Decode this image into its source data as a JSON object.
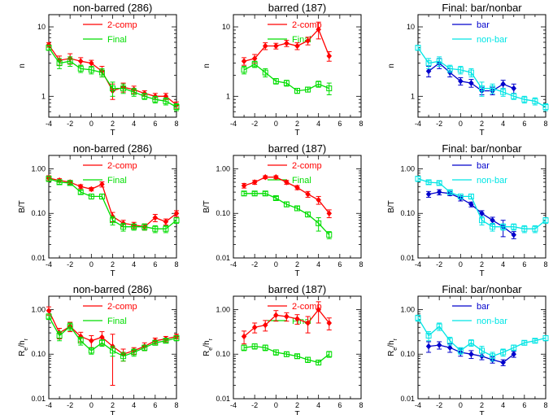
{
  "figure": {
    "x_ticks": [
      "-4",
      "-2",
      "0",
      "2",
      "4",
      "6",
      "8"
    ],
    "x_label": "T"
  },
  "chart_data": [
    {
      "type": "line",
      "title": "non-barred (286)",
      "xlabel": "T",
      "ylabel": "n",
      "yscale": "log",
      "xlim": [
        -4,
        8
      ],
      "ylim": [
        0.5,
        15
      ],
      "y_ticks": [
        "1",
        "10"
      ],
      "legend_placement": "top-center",
      "grid": false,
      "series": [
        {
          "name": "2-comp",
          "color": "#ff0000",
          "marker": "diamond",
          "x": [
            -4,
            -3,
            -2,
            -1,
            0,
            1,
            2,
            3,
            4,
            5,
            6,
            7,
            8
          ],
          "y": [
            5.5,
            3.3,
            3.5,
            3.2,
            3.0,
            2.3,
            1.2,
            1.35,
            1.25,
            1.1,
            1.0,
            1.0,
            0.75
          ],
          "err": [
            0.4,
            0.5,
            0.6,
            0.4,
            0.3,
            0.4,
            0.3,
            0.2,
            0.15,
            0.1,
            0.1,
            0.1,
            0.08
          ]
        },
        {
          "name": "Final",
          "color": "#00dd00",
          "marker": "square",
          "x": [
            -4,
            -3,
            -2,
            -1,
            0,
            1,
            2,
            3,
            4,
            5,
            6,
            7,
            8
          ],
          "y": [
            5.0,
            3.0,
            3.2,
            2.5,
            2.4,
            2.2,
            1.3,
            1.3,
            1.15,
            1.0,
            0.9,
            0.85,
            0.7
          ],
          "err": [
            0.4,
            0.5,
            0.5,
            0.3,
            0.3,
            0.3,
            0.3,
            0.2,
            0.15,
            0.1,
            0.1,
            0.1,
            0.08
          ]
        }
      ]
    },
    {
      "type": "line",
      "title": "barred (187)",
      "xlabel": "T",
      "ylabel": "n",
      "yscale": "log",
      "xlim": [
        -4,
        8
      ],
      "ylim": [
        0.5,
        15
      ],
      "y_ticks": [
        "1",
        "10"
      ],
      "legend_placement": "top-center",
      "grid": false,
      "series": [
        {
          "name": "2-comp",
          "color": "#ff0000",
          "marker": "diamond",
          "x": [
            -3,
            -2,
            -1,
            0,
            1,
            2,
            3,
            4,
            5
          ],
          "y": [
            3.2,
            3.5,
            5.3,
            5.3,
            5.8,
            5.3,
            6.3,
            9.2,
            3.8
          ],
          "err": [
            0.4,
            0.5,
            0.6,
            0.5,
            0.6,
            0.6,
            0.8,
            2.5,
            0.6
          ]
        },
        {
          "name": "Final",
          "color": "#00dd00",
          "marker": "square",
          "x": [
            -3,
            -2,
            -1,
            0,
            1,
            2,
            3,
            4,
            5
          ],
          "y": [
            2.4,
            2.9,
            2.2,
            1.65,
            1.55,
            1.2,
            1.25,
            1.5,
            1.3
          ],
          "err": [
            0.3,
            0.3,
            0.3,
            0.15,
            0.15,
            0.1,
            0.1,
            0.15,
            0.25
          ]
        }
      ]
    },
    {
      "type": "line",
      "title": "Final: bar/nonbar",
      "xlabel": "T",
      "ylabel": "n",
      "yscale": "log",
      "xlim": [
        -4,
        8
      ],
      "ylim": [
        0.5,
        15
      ],
      "y_ticks": [
        "1",
        "10"
      ],
      "legend_placement": "top-center",
      "grid": false,
      "series": [
        {
          "name": "bar",
          "color": "#0000cc",
          "marker": "diamond",
          "x": [
            -3,
            -2,
            -1,
            0,
            1,
            2,
            3,
            4,
            5
          ],
          "y": [
            2.3,
            3.0,
            2.2,
            1.65,
            1.55,
            1.2,
            1.2,
            1.5,
            1.3
          ],
          "err": [
            0.4,
            0.5,
            0.3,
            0.2,
            0.2,
            0.15,
            0.15,
            0.2,
            0.2
          ]
        },
        {
          "name": "non-bar",
          "color": "#00e5e5",
          "marker": "square",
          "x": [
            -4,
            -3,
            -2,
            -1,
            0,
            1,
            2,
            3,
            4,
            5,
            6,
            7,
            8
          ],
          "y": [
            5.0,
            3.0,
            3.2,
            2.5,
            2.4,
            2.2,
            1.3,
            1.3,
            1.15,
            1.0,
            0.9,
            0.85,
            0.7
          ],
          "err": [
            0.4,
            0.5,
            0.5,
            0.3,
            0.3,
            0.3,
            0.3,
            0.2,
            0.15,
            0.1,
            0.1,
            0.1,
            0.08
          ]
        }
      ]
    },
    {
      "type": "line",
      "title": "non-barred (286)",
      "xlabel": "T",
      "ylabel": "B/T",
      "yscale": "log",
      "xlim": [
        -4,
        8
      ],
      "ylim": [
        0.01,
        2
      ],
      "y_ticks": [
        "0.01",
        "0.10",
        "1.00"
      ],
      "legend_placement": "top-center",
      "grid": false,
      "series": [
        {
          "name": "2-comp",
          "color": "#ff0000",
          "marker": "diamond",
          "x": [
            -4,
            -3,
            -2,
            -1,
            0,
            1,
            2,
            3,
            4,
            5,
            6,
            7,
            8
          ],
          "y": [
            0.62,
            0.55,
            0.5,
            0.4,
            0.35,
            0.45,
            0.085,
            0.06,
            0.055,
            0.05,
            0.08,
            0.065,
            0.1
          ],
          "err": [
            0.08,
            0.05,
            0.05,
            0.04,
            0.03,
            0.06,
            0.02,
            0.01,
            0.008,
            0.008,
            0.015,
            0.01,
            0.015
          ]
        },
        {
          "name": "Final",
          "color": "#00dd00",
          "marker": "square",
          "x": [
            -4,
            -3,
            -2,
            -1,
            0,
            1,
            2,
            3,
            4,
            5,
            6,
            7,
            8
          ],
          "y": [
            0.6,
            0.5,
            0.48,
            0.3,
            0.24,
            0.24,
            0.07,
            0.05,
            0.05,
            0.05,
            0.045,
            0.045,
            0.07
          ],
          "err": [
            0.08,
            0.05,
            0.05,
            0.03,
            0.03,
            0.03,
            0.015,
            0.01,
            0.008,
            0.008,
            0.008,
            0.008,
            0.01
          ]
        }
      ]
    },
    {
      "type": "line",
      "title": "barred (187)",
      "xlabel": "T",
      "ylabel": "B/T",
      "yscale": "log",
      "xlim": [
        -4,
        8
      ],
      "ylim": [
        0.01,
        2
      ],
      "y_ticks": [
        "0.01",
        "0.10",
        "1.00"
      ],
      "legend_placement": "top-center",
      "grid": false,
      "series": [
        {
          "name": "2-comp",
          "color": "#ff0000",
          "marker": "diamond",
          "x": [
            -3,
            -2,
            -1,
            0,
            1,
            2,
            3,
            4,
            5
          ],
          "y": [
            0.42,
            0.5,
            0.65,
            0.65,
            0.5,
            0.38,
            0.27,
            0.2,
            0.1
          ],
          "err": [
            0.05,
            0.05,
            0.05,
            0.05,
            0.05,
            0.04,
            0.04,
            0.04,
            0.02
          ]
        },
        {
          "name": "Final",
          "color": "#00dd00",
          "marker": "square",
          "x": [
            -3,
            -2,
            -1,
            0,
            1,
            2,
            3,
            4,
            5
          ],
          "y": [
            0.28,
            0.28,
            0.28,
            0.22,
            0.16,
            0.13,
            0.095,
            0.06,
            0.033
          ],
          "err": [
            0.03,
            0.03,
            0.03,
            0.02,
            0.02,
            0.015,
            0.012,
            0.02,
            0.006
          ]
        }
      ]
    },
    {
      "type": "line",
      "title": "Final: bar/nonbar",
      "xlabel": "T",
      "ylabel": "B/T",
      "yscale": "log",
      "xlim": [
        -4,
        8
      ],
      "ylim": [
        0.01,
        2
      ],
      "y_ticks": [
        "0.01",
        "0.10",
        "1.00"
      ],
      "legend_placement": "top-center",
      "grid": false,
      "series": [
        {
          "name": "bar",
          "color": "#0000cc",
          "marker": "diamond",
          "x": [
            -3,
            -2,
            -1,
            0,
            1,
            2,
            3,
            4,
            5
          ],
          "y": [
            0.27,
            0.3,
            0.28,
            0.22,
            0.16,
            0.1,
            0.07,
            0.05,
            0.033
          ],
          "err": [
            0.04,
            0.04,
            0.03,
            0.03,
            0.02,
            0.015,
            0.012,
            0.02,
            0.006
          ]
        },
        {
          "name": "non-bar",
          "color": "#00e5e5",
          "marker": "square",
          "x": [
            -4,
            -3,
            -2,
            -1,
            0,
            1,
            2,
            3,
            4,
            5,
            6,
            7,
            8
          ],
          "y": [
            0.6,
            0.5,
            0.48,
            0.3,
            0.24,
            0.24,
            0.07,
            0.05,
            0.05,
            0.05,
            0.045,
            0.045,
            0.07
          ],
          "err": [
            0.08,
            0.05,
            0.05,
            0.03,
            0.03,
            0.03,
            0.015,
            0.01,
            0.008,
            0.008,
            0.008,
            0.008,
            0.01
          ]
        }
      ]
    },
    {
      "type": "line",
      "title": "non-barred (286)",
      "xlabel": "T",
      "ylabel": "Re/hr",
      "yscale": "log",
      "xlim": [
        -4,
        8
      ],
      "ylim": [
        0.01,
        2
      ],
      "y_ticks": [
        "0.01",
        "0.10",
        "1.00"
      ],
      "legend_placement": "top-center",
      "grid": false,
      "series": [
        {
          "name": "2-comp",
          "color": "#ff0000",
          "marker": "diamond",
          "x": [
            -4,
            -3,
            -2,
            -1,
            0,
            1,
            2,
            3,
            4,
            5,
            6,
            7,
            8
          ],
          "y": [
            0.95,
            0.3,
            0.42,
            0.25,
            0.2,
            0.24,
            0.15,
            0.1,
            0.12,
            0.15,
            0.2,
            0.22,
            0.25
          ],
          "err": [
            0.2,
            0.08,
            0.1,
            0.06,
            0.06,
            0.08,
            0.13,
            0.03,
            0.02,
            0.03,
            0.03,
            0.03,
            0.03
          ]
        },
        {
          "name": "Final",
          "color": "#00dd00",
          "marker": "square",
          "x": [
            -4,
            -3,
            -2,
            -1,
            0,
            1,
            2,
            3,
            4,
            5,
            6,
            7,
            8
          ],
          "y": [
            0.7,
            0.26,
            0.42,
            0.2,
            0.12,
            0.18,
            0.12,
            0.09,
            0.11,
            0.14,
            0.18,
            0.2,
            0.23
          ],
          "err": [
            0.1,
            0.06,
            0.08,
            0.04,
            0.02,
            0.03,
            0.03,
            0.02,
            0.02,
            0.02,
            0.02,
            0.02,
            0.03
          ]
        }
      ]
    },
    {
      "type": "line",
      "title": "barred (187)",
      "xlabel": "T",
      "ylabel": "Re/hr",
      "yscale": "log",
      "xlim": [
        -4,
        8
      ],
      "ylim": [
        0.01,
        2
      ],
      "y_ticks": [
        "0.01",
        "0.10",
        "1.00"
      ],
      "legend_placement": "top-center",
      "grid": false,
      "series": [
        {
          "name": "2-comp",
          "color": "#ff0000",
          "marker": "diamond",
          "x": [
            -3,
            -2,
            -1,
            0,
            1,
            2,
            3,
            4,
            5
          ],
          "y": [
            0.25,
            0.4,
            0.45,
            0.75,
            0.7,
            0.62,
            0.5,
            1.0,
            0.5
          ],
          "err": [
            0.08,
            0.1,
            0.12,
            0.2,
            0.15,
            0.15,
            0.2,
            0.5,
            0.15
          ]
        },
        {
          "name": "Final",
          "color": "#00dd00",
          "marker": "square",
          "x": [
            -3,
            -2,
            -1,
            0,
            1,
            2,
            3,
            4,
            5
          ],
          "y": [
            0.14,
            0.15,
            0.14,
            0.11,
            0.1,
            0.09,
            0.075,
            0.065,
            0.1
          ],
          "err": [
            0.02,
            0.02,
            0.02,
            0.015,
            0.012,
            0.01,
            0.01,
            0.008,
            0.015
          ]
        }
      ]
    },
    {
      "type": "line",
      "title": "Final: bar/nonbar",
      "xlabel": "T",
      "ylabel": "Re/hr",
      "yscale": "log",
      "xlim": [
        -4,
        8
      ],
      "ylim": [
        0.01,
        2
      ],
      "y_ticks": [
        "0.01",
        "0.10",
        "1.00"
      ],
      "legend_placement": "top-center",
      "grid": false,
      "series": [
        {
          "name": "bar",
          "color": "#0000cc",
          "marker": "diamond",
          "x": [
            -3,
            -2,
            -1,
            0,
            1,
            2,
            3,
            4,
            5
          ],
          "y": [
            0.15,
            0.16,
            0.14,
            0.11,
            0.1,
            0.09,
            0.075,
            0.065,
            0.1
          ],
          "err": [
            0.04,
            0.03,
            0.03,
            0.02,
            0.02,
            0.015,
            0.012,
            0.01,
            0.015
          ]
        },
        {
          "name": "non-bar",
          "color": "#00e5e5",
          "marker": "square",
          "x": [
            -4,
            -3,
            -2,
            -1,
            0,
            1,
            2,
            3,
            4,
            5,
            6,
            7,
            8
          ],
          "y": [
            0.65,
            0.26,
            0.42,
            0.2,
            0.12,
            0.18,
            0.12,
            0.09,
            0.11,
            0.14,
            0.18,
            0.2,
            0.23
          ],
          "err": [
            0.1,
            0.06,
            0.08,
            0.04,
            0.02,
            0.03,
            0.03,
            0.02,
            0.02,
            0.02,
            0.02,
            0.02,
            0.03
          ]
        }
      ]
    }
  ]
}
